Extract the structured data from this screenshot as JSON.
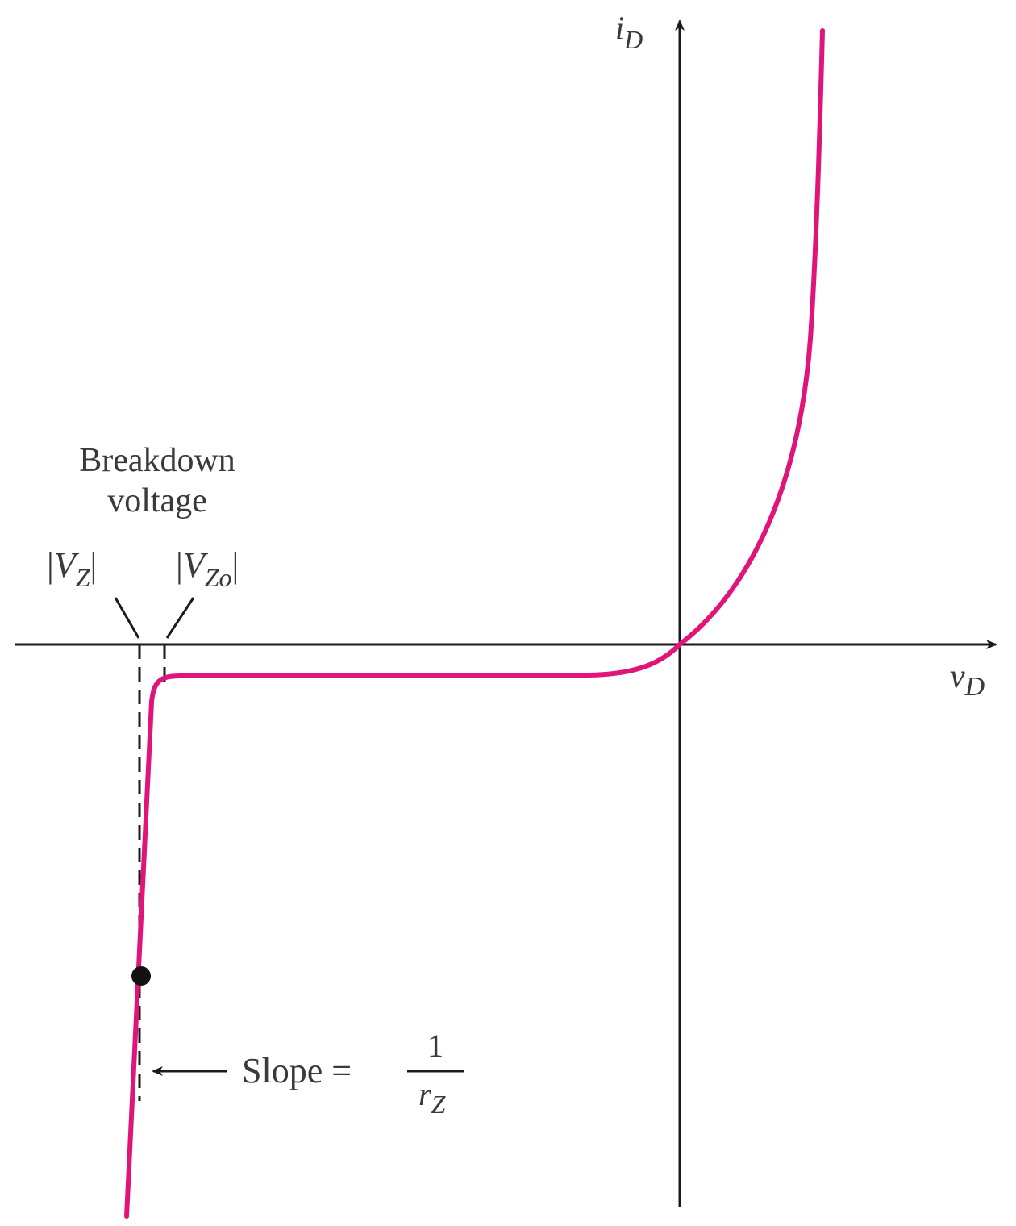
{
  "axes": {
    "y_label_main": "i",
    "y_label_sub": "D",
    "x_label_main": "v",
    "x_label_sub": "D"
  },
  "annotations": {
    "breakdown_line1": "Breakdown",
    "breakdown_line2": "voltage",
    "vz_main": "V",
    "vz_sub": "Z",
    "vzo_main": "V",
    "vzo_sub": "Zo",
    "bar": "|",
    "slope_text": "Slope =",
    "slope_numerator": "1",
    "slope_denominator_main": "r",
    "slope_denominator_sub": "Z"
  },
  "colors": {
    "curve": "#e0157a",
    "axes": "#1a1a1a",
    "text": "#3a3a3a"
  }
}
